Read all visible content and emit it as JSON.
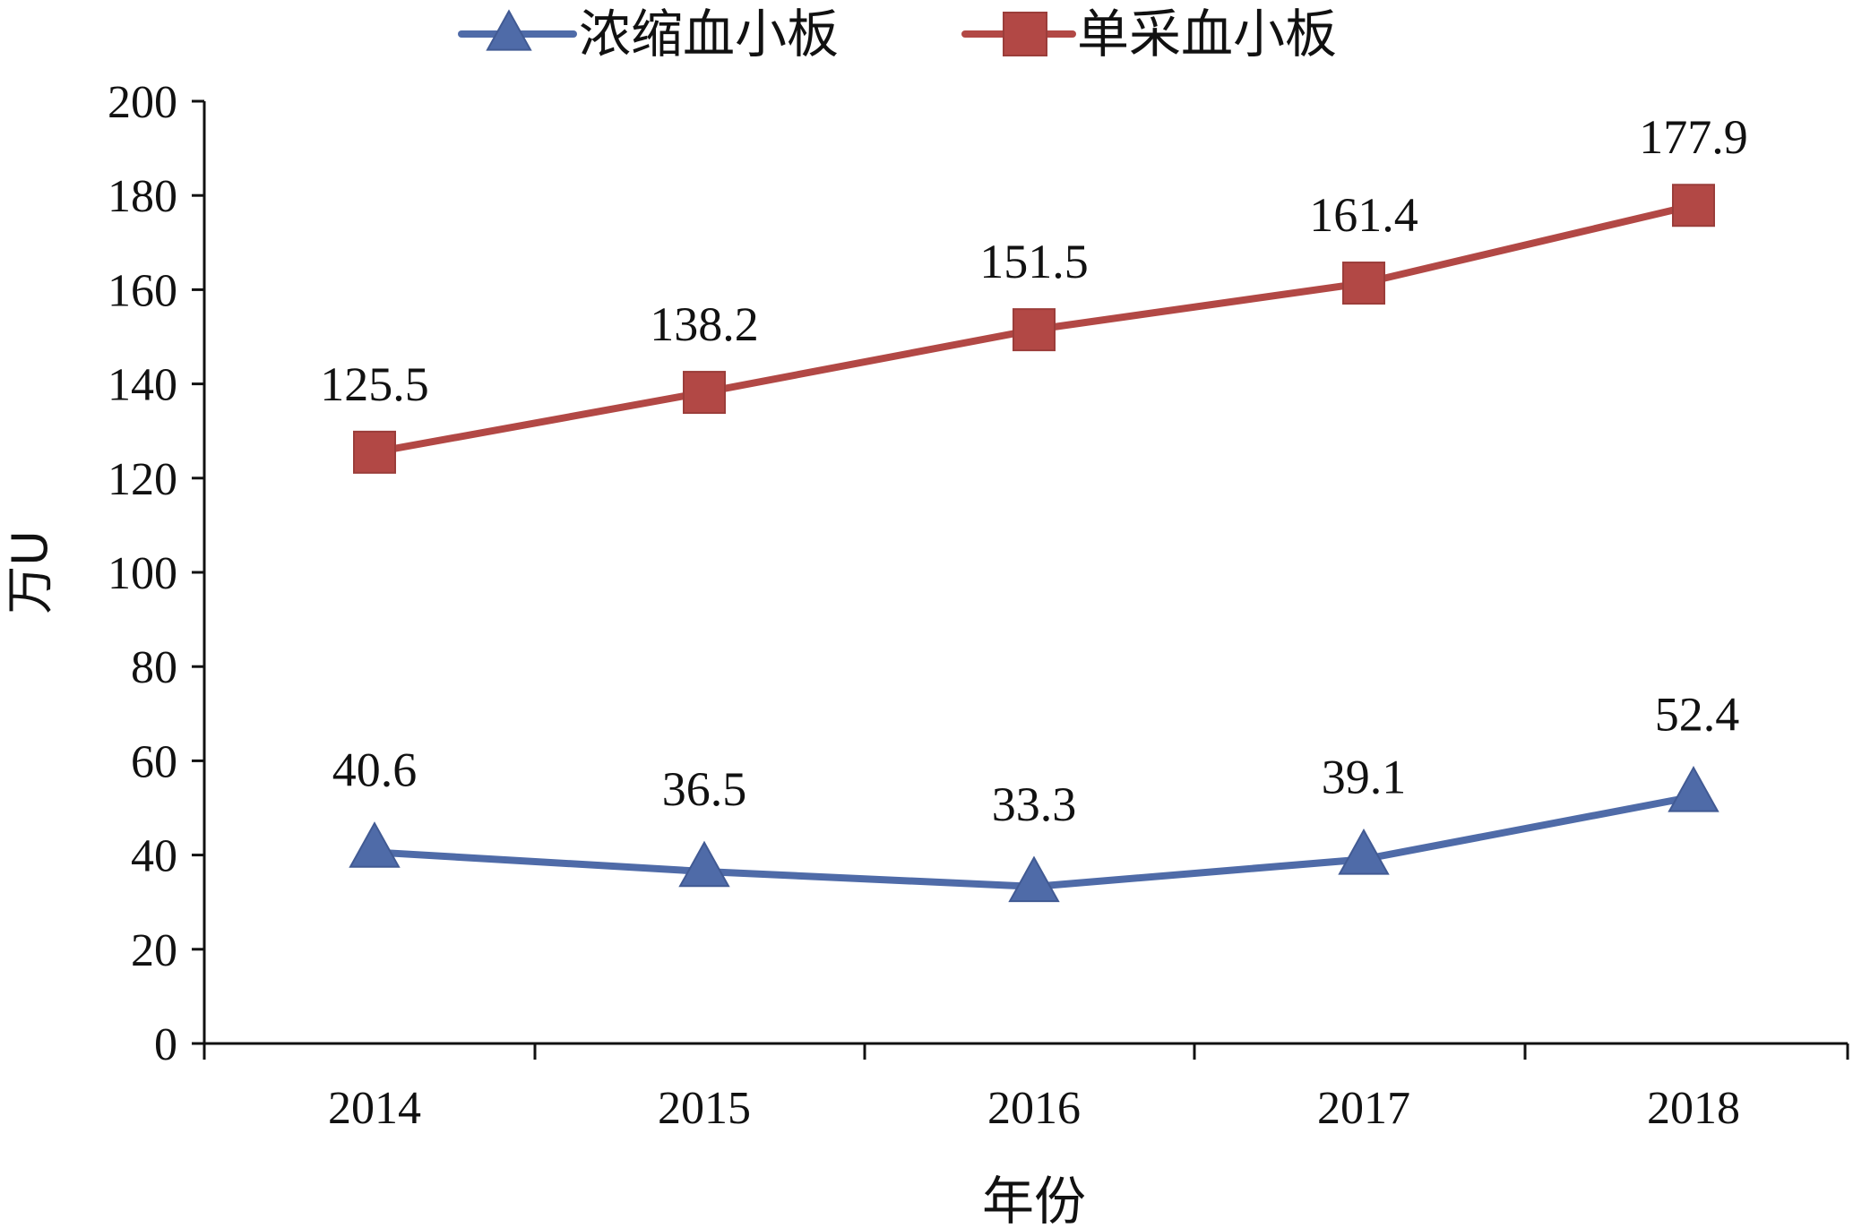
{
  "chart_data": {
    "type": "line",
    "title": "",
    "xlabel": "年份",
    "ylabel": "万U",
    "categories": [
      "2014",
      "2015",
      "2016",
      "2017",
      "2018"
    ],
    "ylim": [
      0,
      200
    ],
    "yticks": [
      0,
      20,
      40,
      60,
      80,
      100,
      120,
      140,
      160,
      180,
      200
    ],
    "grid": false,
    "legend_position": "top",
    "series": [
      {
        "name": "浓缩血小板",
        "marker": "triangle",
        "color": "#4F6BA8",
        "values": [
          40.6,
          36.5,
          33.3,
          39.1,
          52.4
        ],
        "labels": [
          "40.6",
          "36.5",
          "33.3",
          "39.1",
          "52.4"
        ]
      },
      {
        "name": "单采血小板",
        "marker": "square",
        "color": "#B24845",
        "values": [
          125.5,
          138.2,
          151.5,
          161.4,
          177.9
        ],
        "labels": [
          "125.5",
          "138.2",
          "151.5",
          "161.4",
          "177.9"
        ]
      }
    ]
  }
}
